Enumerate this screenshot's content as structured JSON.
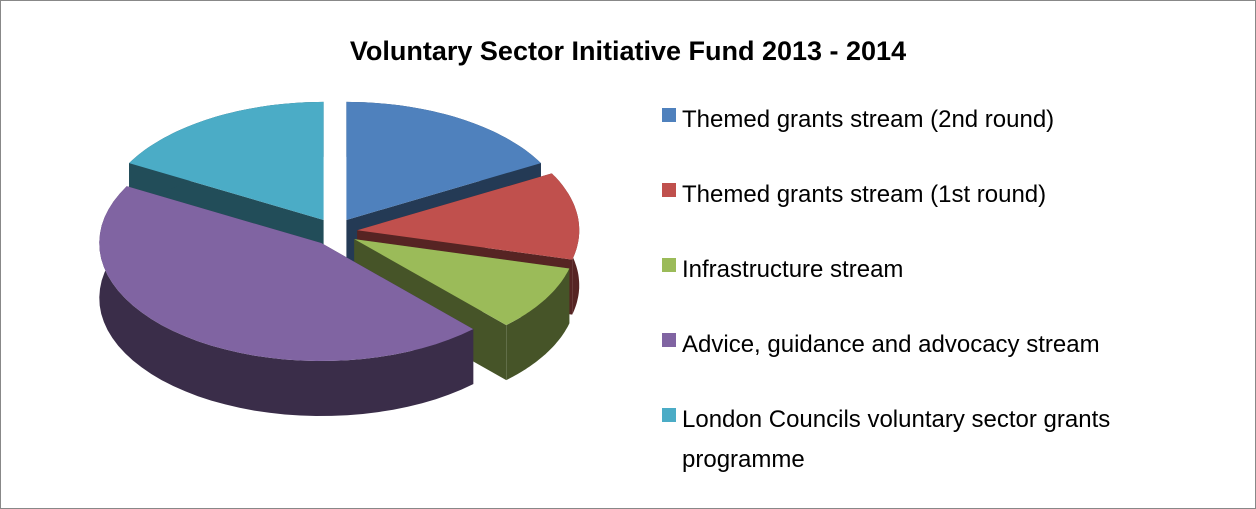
{
  "chart_data": {
    "type": "pie",
    "title": "Voluntary Sector Initiative Fund 2013 - 2014",
    "categories": [
      "Themed grants stream (2nd round)",
      "Themed grants stream (1st round)",
      "Infrastructure stream",
      "Advice, guidance and advocacy stream",
      "London Councils voluntary sector grants programme"
    ],
    "values": [
      17,
      12,
      9,
      45,
      17
    ],
    "colors": [
      "#4f81bd",
      "#c0504d",
      "#9bbb59",
      "#8064a2",
      "#4bacc6"
    ],
    "legend": "right"
  }
}
